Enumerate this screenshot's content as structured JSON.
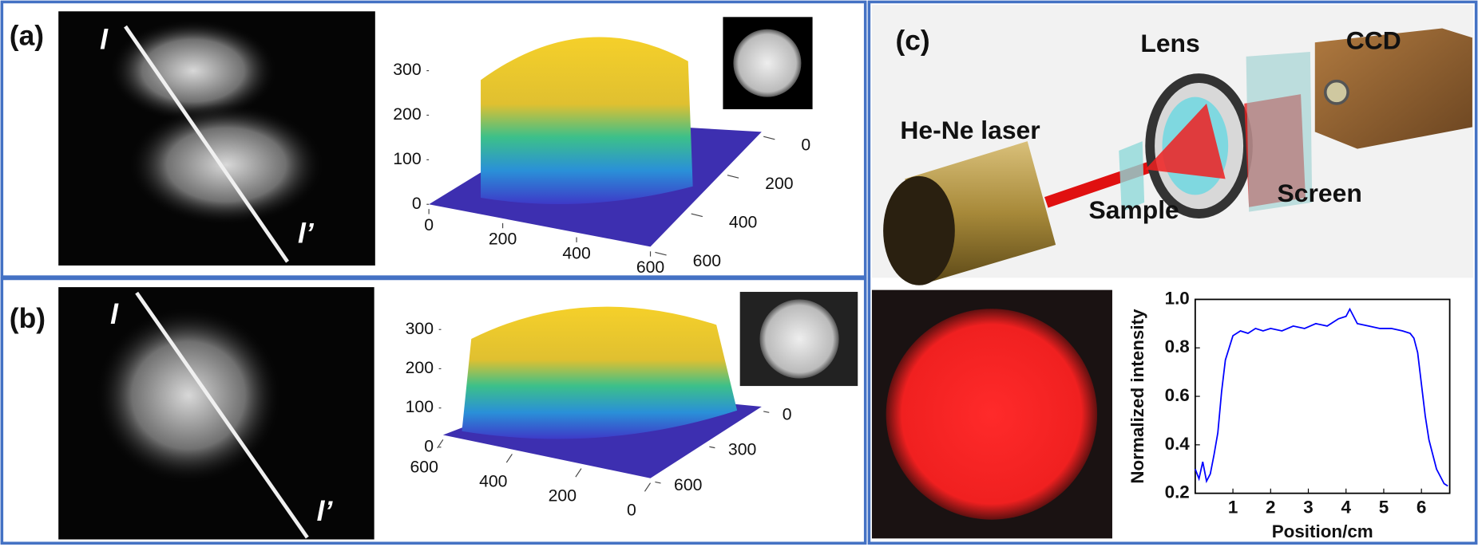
{
  "panel_a": {
    "label": "(a)",
    "line_start": "l",
    "line_end": "l’",
    "surface": {
      "zticks": [
        0,
        100,
        200,
        300
      ],
      "xticks": [
        0,
        200,
        400,
        600
      ],
      "yticks": [
        0,
        200,
        400,
        600
      ]
    }
  },
  "panel_b": {
    "label": "(b)",
    "line_start": "l",
    "line_end": "l’",
    "surface": {
      "zticks": [
        0,
        100,
        200,
        300
      ],
      "xticks": [
        600,
        400,
        200,
        0
      ],
      "yticks": [
        0,
        300,
        600
      ]
    }
  },
  "panel_c": {
    "label": "(c)",
    "laser": "He-Ne laser",
    "lens": "Lens",
    "ccd": "CCD",
    "sample": "Sample",
    "screen": "Screen"
  },
  "chart_data": {
    "type": "line",
    "xlabel": "Position/cm",
    "ylabel": "Normalized intensity",
    "x": [
      0,
      0.1,
      0.2,
      0.3,
      0.4,
      0.5,
      0.6,
      0.7,
      0.8,
      0.9,
      1.0,
      1.2,
      1.4,
      1.6,
      1.8,
      2.0,
      2.3,
      2.6,
      2.9,
      3.2,
      3.5,
      3.8,
      4.0,
      4.1,
      4.3,
      4.6,
      4.9,
      5.2,
      5.5,
      5.7,
      5.8,
      5.9,
      6.0,
      6.1,
      6.2,
      6.3,
      6.4,
      6.5,
      6.6,
      6.7
    ],
    "series": [
      {
        "color": "#0000ff",
        "values": [
          0.3,
          0.26,
          0.33,
          0.25,
          0.28,
          0.36,
          0.45,
          0.62,
          0.75,
          0.8,
          0.85,
          0.87,
          0.86,
          0.88,
          0.87,
          0.88,
          0.87,
          0.89,
          0.88,
          0.9,
          0.89,
          0.92,
          0.93,
          0.96,
          0.9,
          0.89,
          0.88,
          0.88,
          0.87,
          0.86,
          0.84,
          0.78,
          0.65,
          0.52,
          0.42,
          0.36,
          0.3,
          0.27,
          0.24,
          0.23
        ]
      }
    ],
    "xlim": [
      0,
      6.75
    ],
    "ylim": [
      0.2,
      1.0
    ],
    "xticks": [
      1,
      2,
      3,
      4,
      5,
      6
    ],
    "yticks": [
      0.2,
      0.4,
      0.6,
      0.8,
      {
        "value": 1,
        "label": "1.0"
      }
    ]
  }
}
